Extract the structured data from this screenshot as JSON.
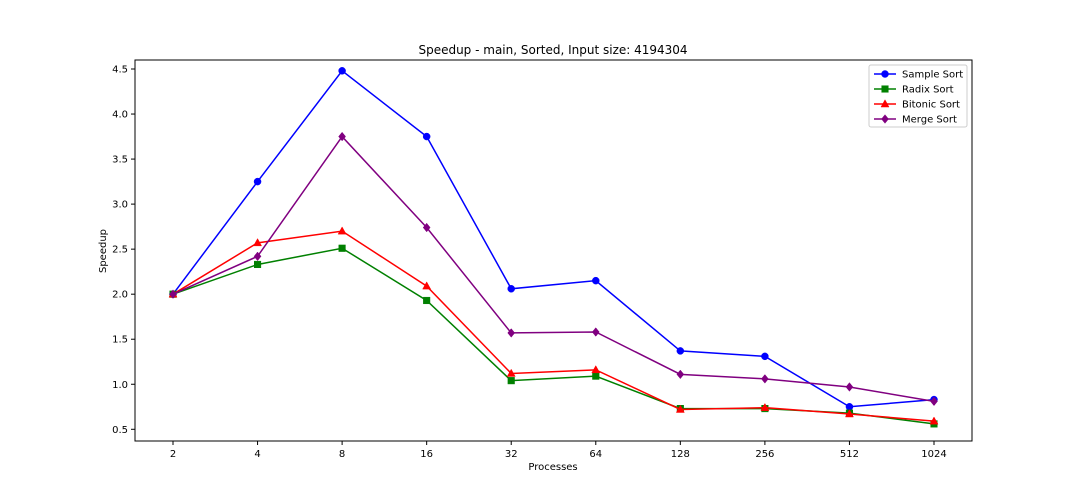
{
  "chart_data": {
    "type": "line",
    "title": "Speedup - main, Sorted, Input size: 4194304",
    "xlabel": "Processes",
    "ylabel": "Speedup",
    "categories": [
      "2",
      "4",
      "8",
      "16",
      "32",
      "64",
      "128",
      "256",
      "512",
      "1024"
    ],
    "ylim": [
      0.37,
      4.6
    ],
    "yticks": [
      0.5,
      1.0,
      1.5,
      2.0,
      2.5,
      3.0,
      3.5,
      4.0,
      4.5
    ],
    "ytick_labels": [
      "0.5",
      "1.0",
      "1.5",
      "2.0",
      "2.5",
      "3.0",
      "3.5",
      "4.0",
      "4.5"
    ],
    "grid": false,
    "legend_position": "top-right",
    "series": [
      {
        "name": "Sample Sort",
        "color": "#0000ff",
        "marker": "circle",
        "values": [
          2.0,
          3.25,
          4.48,
          3.75,
          2.06,
          2.15,
          1.37,
          1.31,
          0.75,
          0.83
        ]
      },
      {
        "name": "Radix Sort",
        "color": "#008000",
        "marker": "square",
        "values": [
          2.0,
          2.33,
          2.51,
          1.93,
          1.04,
          1.09,
          0.73,
          0.73,
          0.68,
          0.56
        ]
      },
      {
        "name": "Bitonic Sort",
        "color": "#ff0000",
        "marker": "triangle",
        "values": [
          2.0,
          2.57,
          2.7,
          2.09,
          1.12,
          1.16,
          0.72,
          0.74,
          0.67,
          0.59
        ]
      },
      {
        "name": "Merge Sort",
        "color": "#800080",
        "marker": "diamond",
        "values": [
          2.0,
          2.42,
          3.75,
          2.74,
          1.57,
          1.58,
          1.11,
          1.06,
          0.97,
          0.81
        ]
      }
    ]
  }
}
